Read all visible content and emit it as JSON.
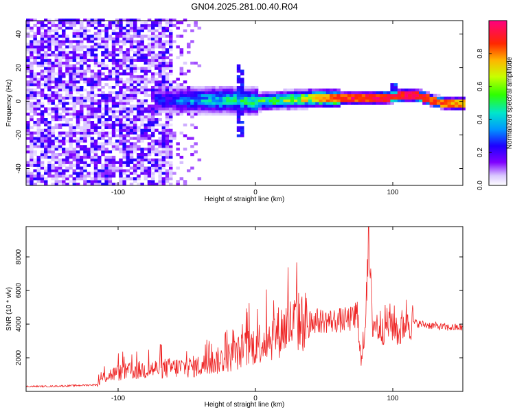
{
  "figure": {
    "title": "GN04.2025.281.00.40.R04"
  },
  "chart_data": [
    {
      "type": "heatmap",
      "title": "",
      "xlabel": "Height of straight line (km)",
      "ylabel": "Frequency (Hz)",
      "xlim": [
        -167,
        151
      ],
      "ylim": [
        -50,
        48
      ],
      "xticks": [
        -100,
        0,
        100
      ],
      "yticks": [
        -40,
        -20,
        0,
        20,
        40
      ],
      "colorbar": {
        "label": "Normalized spectral amplitude",
        "range": [
          0,
          1
        ],
        "ticks": [
          0.0,
          0.2,
          0.4,
          0.6,
          0.8
        ]
      },
      "ridge": {
        "description": "spectral energy concentrated near 0 Hz, broad noise below -60 km",
        "x": [
          -60,
          -40,
          -20,
          0,
          20,
          40,
          60,
          80,
          100,
          110,
          120,
          130,
          140,
          150
        ],
        "center_hz": [
          0,
          0,
          0,
          -1,
          0,
          1,
          1,
          1,
          2,
          3,
          2,
          -1,
          -2,
          -2
        ],
        "amplitude": [
          0.3,
          0.4,
          0.45,
          0.5,
          0.6,
          0.75,
          0.85,
          0.9,
          0.9,
          0.95,
          0.9,
          0.85,
          0.8,
          0.8
        ]
      }
    },
    {
      "type": "line",
      "title": "",
      "xlabel": "Height of straight line (km)",
      "ylabel": "SNR (10 * v/v)",
      "xlim": [
        -167,
        151
      ],
      "ylim": [
        0,
        9800
      ],
      "xticks": [
        -100,
        0,
        100
      ],
      "yticks": [
        2000,
        4000,
        6000,
        8000
      ],
      "color": "#ee2222",
      "series": [
        {
          "name": "SNR",
          "x": [
            -167,
            -150,
            -130,
            -115,
            -110,
            -100,
            -80,
            -60,
            -40,
            -20,
            -10,
            0,
            10,
            20,
            30,
            40,
            50,
            60,
            70,
            75,
            77,
            80,
            82,
            85,
            90,
            95,
            100,
            105,
            110,
            115,
            120,
            130,
            140,
            151
          ],
          "y": [
            300,
            300,
            350,
            400,
            900,
            1100,
            1300,
            1400,
            1500,
            2000,
            2400,
            2800,
            3200,
            3700,
            4100,
            4200,
            4200,
            4200,
            4300,
            4400,
            1500,
            4300,
            9500,
            4200,
            3800,
            4000,
            4100,
            3500,
            4400,
            4100,
            4000,
            3900,
            3800,
            3800
          ]
        }
      ]
    }
  ]
}
